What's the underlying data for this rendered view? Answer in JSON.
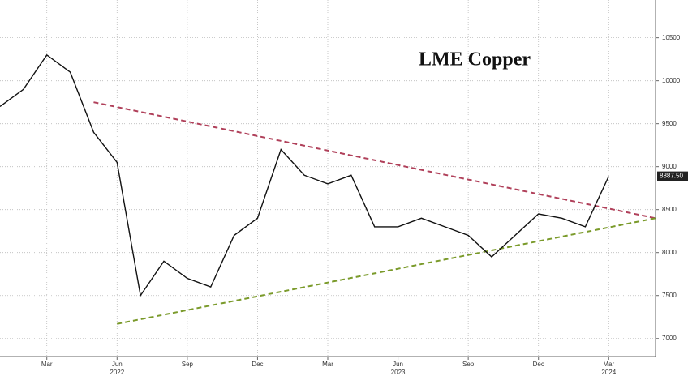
{
  "chart_data": {
    "type": "line",
    "title": "LME Copper",
    "x": [
      "2022-01",
      "2022-02",
      "2022-03",
      "2022-04",
      "2022-05",
      "2022-06",
      "2022-07",
      "2022-08",
      "2022-09",
      "2022-10",
      "2022-11",
      "2022-12",
      "2023-01",
      "2023-02",
      "2023-03",
      "2023-04",
      "2023-05",
      "2023-06",
      "2023-07",
      "2023-08",
      "2023-09",
      "2023-10",
      "2023-11",
      "2023-12",
      "2024-01",
      "2024-02",
      "2024-03"
    ],
    "series": [
      {
        "color": "#111111",
        "values": [
          9700,
          9900,
          10300,
          10100,
          9400,
          9050,
          7500,
          7900,
          7700,
          7600,
          8200,
          8400,
          9200,
          8900,
          8800,
          8900,
          8300,
          8300,
          8400,
          8300,
          8200,
          7950,
          8200,
          8450,
          8400,
          8300,
          8887.5
        ]
      }
    ],
    "last_value": {
      "value": 8887.5,
      "label": "8887.50"
    },
    "trendlines": [
      {
        "color": "#b0405a",
        "x": [
          "2022-05",
          "2024-05"
        ],
        "values": [
          9750,
          8400
        ]
      },
      {
        "color": "#7a9a2a",
        "x": [
          "2022-06",
          "2024-05"
        ],
        "values": [
          7170,
          8400
        ]
      }
    ],
    "xlim": [
      "2022-01",
      "2024-05"
    ],
    "xticks": [
      {
        "value": "2022-03",
        "label": "Mar"
      },
      {
        "value": "2022-06",
        "label": "Jun"
      },
      {
        "value": "2022-09",
        "label": "Sep"
      },
      {
        "value": "2022-12",
        "label": "Dec"
      },
      {
        "value": "2023-03",
        "label": "Mar"
      },
      {
        "value": "2023-06",
        "label": "Jun"
      },
      {
        "value": "2023-09",
        "label": "Sep"
      },
      {
        "value": "2023-12",
        "label": "Dec"
      },
      {
        "value": "2024-03",
        "label": "Mar"
      }
    ],
    "years": [
      {
        "value": "2022-06",
        "label": "2022"
      },
      {
        "value": "2023-06",
        "label": "2023"
      },
      {
        "value": "2024-03",
        "label": "2024"
      }
    ],
    "ylim": [
      6790,
      10940
    ],
    "yticks": [
      7000,
      7500,
      8000,
      8500,
      9000,
      9500,
      10000,
      10500
    ],
    "grid": true
  }
}
